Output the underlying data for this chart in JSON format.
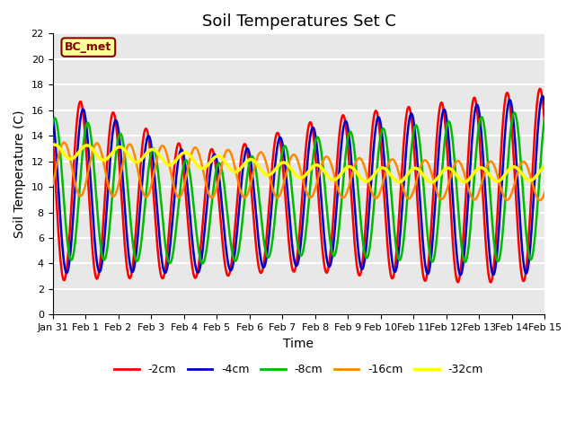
{
  "title": "Soil Temperatures Set C",
  "xlabel": "Time",
  "ylabel": "Soil Temperature (C)",
  "ylim": [
    0,
    22
  ],
  "xtick_labels": [
    "Jan 31",
    "Feb 1",
    "Feb 2",
    "Feb 3",
    "Feb 4",
    "Feb 5",
    "Feb 6",
    "Feb 7",
    "Feb 8",
    "Feb 9",
    "Feb 10",
    "Feb 11",
    "Feb 12",
    "Feb 13",
    "Feb 14",
    "Feb 15"
  ],
  "series_colors": {
    "-2cm": "#FF0000",
    "-4cm": "#0000CC",
    "-8cm": "#00BB00",
    "-16cm": "#FF8800",
    "-32cm": "#FFFF00"
  },
  "annotation_text": "BC_met",
  "annotation_bg": "#FFFF99",
  "annotation_border": "#880000",
  "plot_bg": "#E8E8E8",
  "grid_color": "#FFFFFF",
  "title_fontsize": 13,
  "axis_label_fontsize": 10,
  "tick_fontsize": 8
}
